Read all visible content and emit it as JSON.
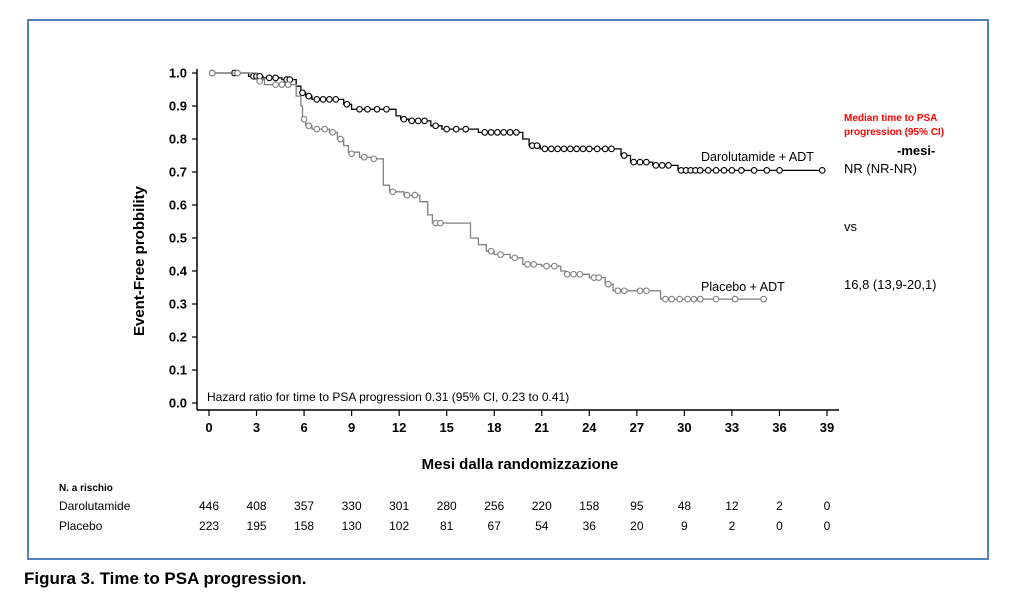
{
  "caption": "Figura 3. Time to PSA progression.",
  "colors": {
    "frame": "#4f81bd",
    "darolutamide": "#000000",
    "placebo": "#808080",
    "median_title": "#ff0000"
  },
  "chart_data": {
    "type": "line",
    "title": "",
    "ylabel": "Event-Free probbility",
    "xlabel": "Mesi dalla randomizzazione",
    "xlim": [
      0,
      39
    ],
    "ylim": [
      0,
      1
    ],
    "x_ticks": [
      0,
      3,
      6,
      9,
      12,
      15,
      18,
      21,
      24,
      27,
      30,
      33,
      36,
      39
    ],
    "y_ticks": [
      "0.0",
      "0.1",
      "0.2",
      "0.3",
      "0.4",
      "0.5",
      "0.6",
      "0.7",
      "0.8",
      "0.9",
      "1.0"
    ],
    "grid": false,
    "annotation": "Hazard ratio for time to PSA progression 0.31 (95% CI, 0.23 to 0.41)",
    "series": [
      {
        "name": "Darolutamide + ADT",
        "color": "#000000",
        "steps": [
          [
            0,
            1.0
          ],
          [
            2.5,
            0.99
          ],
          [
            3.4,
            0.985
          ],
          [
            4.6,
            0.98
          ],
          [
            5.5,
            0.96
          ],
          [
            5.8,
            0.94
          ],
          [
            6.1,
            0.93
          ],
          [
            6.5,
            0.92
          ],
          [
            8.5,
            0.905
          ],
          [
            9,
            0.89
          ],
          [
            11.8,
            0.87
          ],
          [
            12.1,
            0.86
          ],
          [
            12.6,
            0.855
          ],
          [
            14,
            0.84
          ],
          [
            14.7,
            0.83
          ],
          [
            17,
            0.82
          ],
          [
            19.8,
            0.8
          ],
          [
            20.2,
            0.78
          ],
          [
            20.9,
            0.77
          ],
          [
            26,
            0.75
          ],
          [
            26.6,
            0.73
          ],
          [
            28,
            0.72
          ],
          [
            29.6,
            0.705
          ],
          [
            38.7,
            0.705
          ]
        ],
        "censored": [
          [
            0.2,
            1.0
          ],
          [
            1.6,
            1.0
          ],
          [
            2.8,
            0.99
          ],
          [
            3.0,
            0.99
          ],
          [
            3.2,
            0.99
          ],
          [
            3.8,
            0.985
          ],
          [
            4.2,
            0.985
          ],
          [
            4.9,
            0.98
          ],
          [
            5.1,
            0.98
          ],
          [
            5.9,
            0.94
          ],
          [
            6.3,
            0.93
          ],
          [
            6.8,
            0.92
          ],
          [
            7.2,
            0.92
          ],
          [
            7.6,
            0.92
          ],
          [
            8.0,
            0.92
          ],
          [
            8.7,
            0.905
          ],
          [
            9.5,
            0.89
          ],
          [
            10.0,
            0.89
          ],
          [
            10.6,
            0.89
          ],
          [
            11.2,
            0.89
          ],
          [
            12.3,
            0.86
          ],
          [
            12.8,
            0.855
          ],
          [
            13.2,
            0.855
          ],
          [
            13.6,
            0.855
          ],
          [
            14.3,
            0.84
          ],
          [
            15.0,
            0.83
          ],
          [
            15.6,
            0.83
          ],
          [
            16.2,
            0.83
          ],
          [
            17.4,
            0.82
          ],
          [
            17.8,
            0.82
          ],
          [
            18.2,
            0.82
          ],
          [
            18.6,
            0.82
          ],
          [
            19.0,
            0.82
          ],
          [
            19.4,
            0.82
          ],
          [
            20.4,
            0.78
          ],
          [
            20.7,
            0.78
          ],
          [
            21.2,
            0.77
          ],
          [
            21.6,
            0.77
          ],
          [
            22.0,
            0.77
          ],
          [
            22.4,
            0.77
          ],
          [
            22.8,
            0.77
          ],
          [
            23.2,
            0.77
          ],
          [
            23.6,
            0.77
          ],
          [
            24.0,
            0.77
          ],
          [
            24.5,
            0.77
          ],
          [
            25.0,
            0.77
          ],
          [
            25.4,
            0.77
          ],
          [
            26.2,
            0.75
          ],
          [
            26.8,
            0.73
          ],
          [
            27.2,
            0.73
          ],
          [
            27.6,
            0.73
          ],
          [
            28.2,
            0.72
          ],
          [
            28.6,
            0.72
          ],
          [
            29.0,
            0.72
          ],
          [
            29.8,
            0.705
          ],
          [
            30.1,
            0.705
          ],
          [
            30.4,
            0.705
          ],
          [
            30.7,
            0.705
          ],
          [
            31.0,
            0.705
          ],
          [
            31.5,
            0.705
          ],
          [
            32.0,
            0.705
          ],
          [
            32.5,
            0.705
          ],
          [
            33.0,
            0.705
          ],
          [
            33.6,
            0.705
          ],
          [
            34.4,
            0.705
          ],
          [
            35.2,
            0.705
          ],
          [
            36.0,
            0.705
          ],
          [
            38.7,
            0.705
          ]
        ]
      },
      {
        "name": "Placebo + ADT",
        "color": "#808080",
        "steps": [
          [
            0,
            1.0
          ],
          [
            3.0,
            0.98
          ],
          [
            3.5,
            0.965
          ],
          [
            5.5,
            0.93
          ],
          [
            5.8,
            0.9
          ],
          [
            5.9,
            0.86
          ],
          [
            6.1,
            0.84
          ],
          [
            6.5,
            0.83
          ],
          [
            7.6,
            0.82
          ],
          [
            8.1,
            0.8
          ],
          [
            8.5,
            0.78
          ],
          [
            8.8,
            0.76
          ],
          [
            9.5,
            0.745
          ],
          [
            10.3,
            0.74
          ],
          [
            11.0,
            0.66
          ],
          [
            11.4,
            0.64
          ],
          [
            12.3,
            0.63
          ],
          [
            13.3,
            0.61
          ],
          [
            13.8,
            0.57
          ],
          [
            14.1,
            0.545
          ],
          [
            16.5,
            0.5
          ],
          [
            17.0,
            0.48
          ],
          [
            17.5,
            0.46
          ],
          [
            18.0,
            0.45
          ],
          [
            19.0,
            0.44
          ],
          [
            19.8,
            0.42
          ],
          [
            21.0,
            0.415
          ],
          [
            22.2,
            0.4
          ],
          [
            22.5,
            0.39
          ],
          [
            24.0,
            0.38
          ],
          [
            25.0,
            0.36
          ],
          [
            25.5,
            0.34
          ],
          [
            28.0,
            0.34
          ],
          [
            28.5,
            0.315
          ],
          [
            35.0,
            0.315
          ]
        ],
        "censored": [
          [
            0.2,
            1.0
          ],
          [
            1.8,
            1.0
          ],
          [
            3.2,
            0.975
          ],
          [
            4.2,
            0.965
          ],
          [
            4.6,
            0.965
          ],
          [
            5.0,
            0.965
          ],
          [
            6.0,
            0.86
          ],
          [
            6.3,
            0.84
          ],
          [
            6.8,
            0.83
          ],
          [
            7.3,
            0.83
          ],
          [
            7.8,
            0.82
          ],
          [
            8.3,
            0.8
          ],
          [
            9.0,
            0.755
          ],
          [
            9.8,
            0.745
          ],
          [
            10.4,
            0.74
          ],
          [
            11.6,
            0.64
          ],
          [
            12.5,
            0.63
          ],
          [
            13.0,
            0.63
          ],
          [
            14.3,
            0.545
          ],
          [
            14.6,
            0.545
          ],
          [
            17.8,
            0.46
          ],
          [
            18.4,
            0.45
          ],
          [
            19.3,
            0.44
          ],
          [
            20.1,
            0.42
          ],
          [
            20.5,
            0.42
          ],
          [
            21.3,
            0.415
          ],
          [
            21.8,
            0.415
          ],
          [
            22.6,
            0.39
          ],
          [
            23.0,
            0.39
          ],
          [
            23.4,
            0.39
          ],
          [
            24.3,
            0.38
          ],
          [
            24.6,
            0.38
          ],
          [
            25.2,
            0.36
          ],
          [
            25.8,
            0.34
          ],
          [
            26.2,
            0.34
          ],
          [
            27.2,
            0.34
          ],
          [
            27.6,
            0.34
          ],
          [
            28.8,
            0.315
          ],
          [
            29.2,
            0.315
          ],
          [
            29.7,
            0.315
          ],
          [
            30.2,
            0.315
          ],
          [
            30.6,
            0.315
          ],
          [
            31.0,
            0.315
          ],
          [
            32.0,
            0.315
          ],
          [
            33.2,
            0.315
          ],
          [
            35.0,
            0.315
          ]
        ]
      }
    ],
    "series_labels": [
      "Darolutamide + ADT",
      "Placebo  + ADT"
    ]
  },
  "median": {
    "title_line1": "Median time to PSA",
    "title_line2": "progression (95% CI)",
    "unit": "-mesi-",
    "darolutamide_value": "NR (NR-NR)",
    "vs": "vs",
    "placebo_value": "16,8 (13,9-20,1)"
  },
  "risk_table": {
    "title": "N. a rischio",
    "rows": [
      {
        "label": "Darolutamide",
        "values": [
          "446",
          "408",
          "357",
          "330",
          "301",
          "280",
          "256",
          "220",
          "158",
          "95",
          "48",
          "12",
          "2",
          "0"
        ]
      },
      {
        "label": "Placebo",
        "values": [
          "223",
          "195",
          "158",
          "130",
          "102",
          "81",
          "67",
          "54",
          "36",
          "20",
          "9",
          "2",
          "0",
          "0"
        ]
      }
    ]
  }
}
